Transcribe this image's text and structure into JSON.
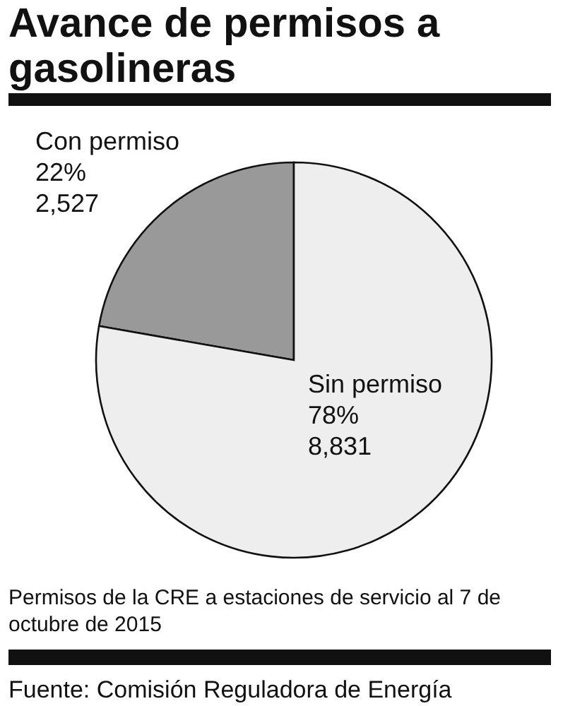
{
  "chart_data": {
    "type": "pie",
    "title": "Avance de permisos a gasolineras",
    "categories": [
      "Con permiso",
      "Sin permiso"
    ],
    "values": [
      2527,
      8831
    ],
    "colors": [
      "#999999",
      "#eeeeee"
    ],
    "value_labels": [
      "22%\n2,527",
      "78%\n8,831"
    ],
    "annotations": [
      "Permisos de la CRE a estaciones de servicio al 7 de octubre de 2015",
      "Fuente: Comisión Reguladora de Energía"
    ]
  }
}
